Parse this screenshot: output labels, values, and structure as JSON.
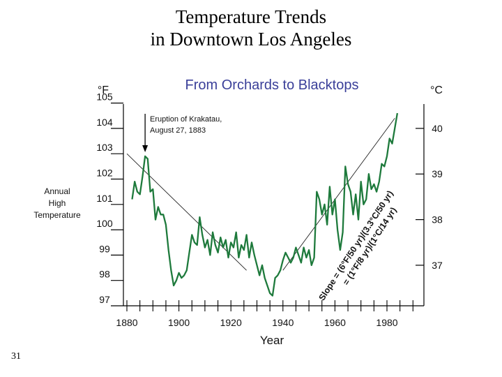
{
  "slide": {
    "title_line1": "Temperature Trends",
    "title_line2": "in Downtown Los Angeles",
    "page_number": "31"
  },
  "chart_data": {
    "type": "line",
    "title": "From Orchards to Blacktops",
    "ylabel": "Annual High Temperature",
    "ylabel_lines": [
      "Annual",
      "High",
      "Temperature"
    ],
    "xlabel": "Year",
    "y_left_unit": "°F",
    "y_right_unit": "°C",
    "xlim": [
      1880,
      1990
    ],
    "ylim": [
      97,
      105
    ],
    "x_ticks": [
      1880,
      1900,
      1920,
      1940,
      1960,
      1980
    ],
    "y_left_ticks": [
      97,
      98,
      99,
      100,
      101,
      102,
      103,
      104,
      105
    ],
    "y_right_ticks": [
      37,
      38,
      39,
      40
    ],
    "grid": false,
    "color": "#1e7a3c",
    "annotation": {
      "lines": [
        "Eruption of Krakatau,",
        "August 27, 1883"
      ],
      "x": 1887
    },
    "slope_text": {
      "line1": "Slope = (6°F/50 yr)/(3.3°C/50 yr)",
      "line2": "= (1°F/8 yr)/(1°C/14 yr)"
    },
    "trend_lines": [
      {
        "x": [
          1880,
          1926
        ],
        "y": [
          103.0,
          98.4
        ]
      },
      {
        "x": [
          1940,
          1983
        ],
        "y": [
          98.4,
          104.4
        ]
      }
    ],
    "series": [
      {
        "x": [
          1882,
          1883,
          1884,
          1885,
          1886,
          1887,
          1888,
          1889,
          1890,
          1891,
          1892,
          1893,
          1894,
          1895,
          1896,
          1897,
          1898,
          1899,
          1900,
          1901,
          1902,
          1903,
          1904,
          1905,
          1906,
          1907,
          1908,
          1909,
          1910,
          1911,
          1912,
          1913,
          1914,
          1915,
          1916,
          1917,
          1918,
          1919,
          1920,
          1921,
          1922,
          1923,
          1924,
          1925,
          1926,
          1927,
          1928,
          1929,
          1930,
          1931,
          1932,
          1933,
          1934,
          1935,
          1936,
          1937,
          1938,
          1939,
          1940,
          1941,
          1942,
          1943,
          1944,
          1945,
          1946,
          1947,
          1948,
          1949,
          1950,
          1951,
          1952,
          1953,
          1954,
          1955,
          1956,
          1957,
          1958,
          1959,
          1960,
          1961,
          1962,
          1963,
          1964,
          1965,
          1966,
          1967,
          1968,
          1969,
          1970,
          1971,
          1972,
          1973,
          1974,
          1975,
          1976,
          1977,
          1978,
          1979,
          1980,
          1981,
          1982,
          1983,
          1984
        ],
        "y": [
          101.2,
          101.9,
          101.5,
          101.4,
          102.1,
          102.9,
          102.8,
          101.5,
          101.6,
          100.4,
          100.9,
          100.6,
          100.6,
          100.2,
          99.2,
          98.4,
          97.8,
          98.0,
          98.3,
          98.1,
          98.2,
          98.4,
          99.1,
          99.8,
          99.5,
          99.4,
          100.5,
          99.8,
          99.3,
          99.6,
          99.0,
          99.9,
          99.4,
          99.1,
          99.7,
          99.3,
          99.6,
          98.9,
          99.5,
          99.3,
          99.9,
          98.9,
          99.4,
          99.2,
          99.8,
          98.9,
          99.5,
          99.0,
          98.6,
          98.2,
          98.6,
          98.1,
          97.8,
          97.5,
          97.4,
          98.1,
          98.2,
          98.4,
          98.8,
          99.1,
          98.9,
          98.7,
          98.9,
          99.3,
          99.0,
          98.7,
          99.3,
          98.9,
          99.2,
          98.6,
          98.9,
          101.5,
          101.2,
          100.6,
          101.0,
          100.2,
          101.7,
          100.6,
          101.2,
          100.0,
          99.2,
          99.9,
          102.5,
          101.8,
          101.5,
          100.6,
          101.4,
          100.4,
          101.9,
          101.0,
          101.2,
          102.2,
          101.6,
          101.8,
          101.5,
          101.9,
          102.6,
          102.5,
          102.9,
          103.6,
          103.4,
          104.0,
          104.6
        ]
      }
    ]
  }
}
